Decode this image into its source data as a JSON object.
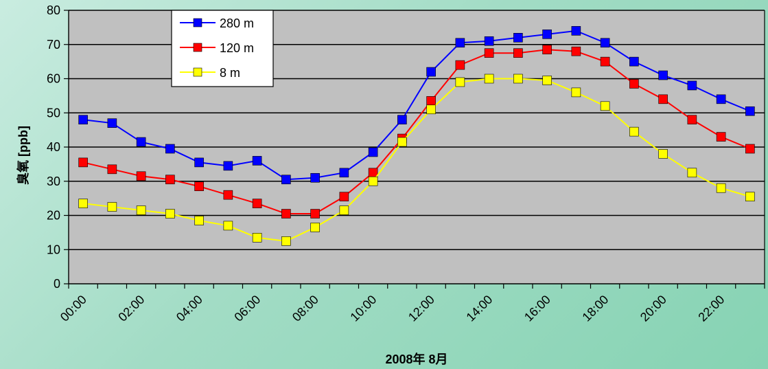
{
  "chart_data": {
    "type": "line",
    "title": "",
    "xlabel": "2008年 8月",
    "ylabel": "臭氧 [ppb]",
    "ylim": [
      0,
      80
    ],
    "yticks": [
      "0",
      "10",
      "20",
      "30",
      "40",
      "50",
      "60",
      "70",
      "80"
    ],
    "x": [
      "00:00",
      "01:00",
      "02:00",
      "03:00",
      "04:00",
      "05:00",
      "06:00",
      "07:00",
      "08:00",
      "09:00",
      "10:00",
      "11:00",
      "12:00",
      "13:00",
      "14:00",
      "15:00",
      "16:00",
      "17:00",
      "18:00",
      "19:00",
      "20:00",
      "21:00",
      "22:00",
      "23:00"
    ],
    "xtick_labels": [
      "00:00",
      "02:00",
      "04:00",
      "06:00",
      "08:00",
      "10:00",
      "12:00",
      "14:00",
      "16:00",
      "18:00",
      "20:00",
      "22:00"
    ],
    "grid": true,
    "legend_position": "top-left",
    "plot_background": "#c0c0c0",
    "series": [
      {
        "name": "280 m",
        "color": "#0000ff",
        "values": [
          48,
          47,
          41.5,
          39.5,
          35.5,
          34.5,
          36,
          30.5,
          31,
          32.5,
          38.5,
          48,
          62,
          70.5,
          71,
          72,
          73,
          74,
          70.5,
          65,
          61,
          58,
          54,
          50.5
        ]
      },
      {
        "name": "120 m",
        "color": "#ff0000",
        "values": [
          35.5,
          33.5,
          31.5,
          30.5,
          28.5,
          26,
          23.5,
          20.5,
          20.5,
          25.5,
          32.5,
          42.5,
          53.5,
          64,
          67.5,
          67.5,
          68.5,
          68,
          65,
          58.5,
          54,
          48,
          43,
          39.5
        ]
      },
      {
        "name": "8 m",
        "color": "#ffff00",
        "values": [
          23.5,
          22.5,
          21.5,
          20.5,
          18.5,
          17,
          13.5,
          12.5,
          16.5,
          21.5,
          30,
          41.5,
          51,
          59,
          60,
          60,
          59.5,
          56,
          52,
          44.5,
          38,
          32.5,
          28,
          25.5
        ]
      }
    ]
  }
}
